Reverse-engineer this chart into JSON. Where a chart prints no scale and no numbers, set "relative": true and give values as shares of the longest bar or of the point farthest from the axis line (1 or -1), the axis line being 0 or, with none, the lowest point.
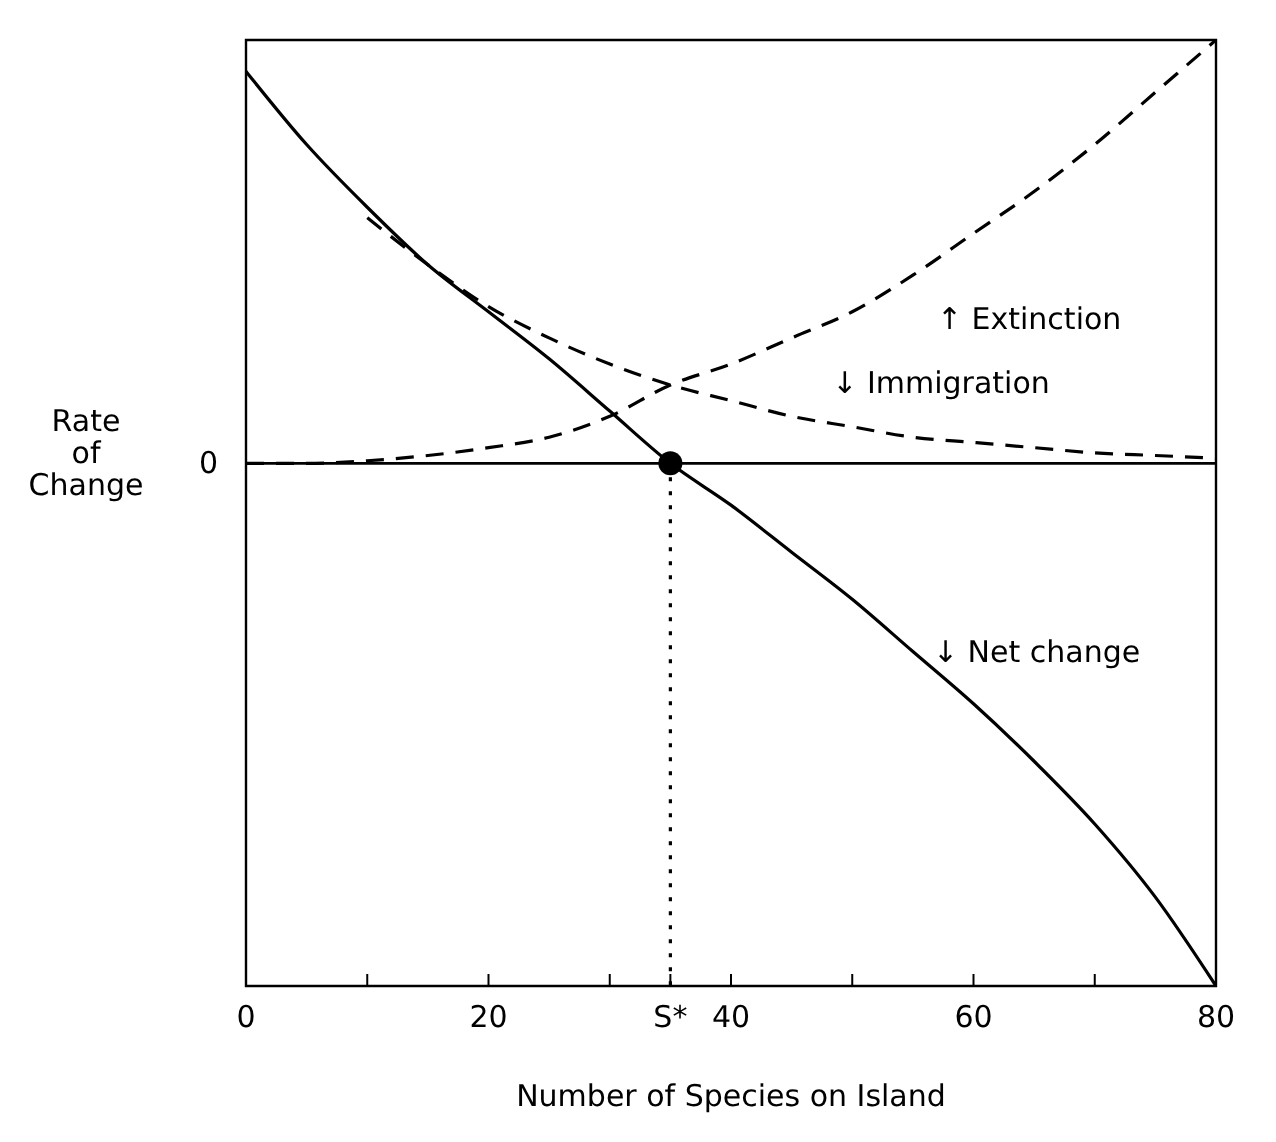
{
  "chart_data": {
    "type": "line",
    "relative": true,
    "xlabel": "Number of Species on Island",
    "ylabel": "Rate of Change",
    "xlim": [
      0,
      80
    ],
    "xticks": [
      0,
      {
        "value": 10,
        "label": null
      },
      20,
      {
        "value": 30,
        "label": null
      },
      {
        "value": 35,
        "label": "S*"
      },
      40,
      {
        "value": 50,
        "label": null
      },
      60,
      {
        "value": 70,
        "label": null
      },
      80
    ],
    "series": [
      {
        "name": "↓ Net change",
        "color": "#000000",
        "line_style": "solid",
        "x": [
          0,
          5,
          10,
          15,
          20,
          25,
          30,
          35,
          40,
          45,
          50,
          55,
          60,
          65,
          70,
          75,
          80
        ],
        "values": [
          0.75,
          0.61,
          0.49,
          0.38,
          0.29,
          0.2,
          0.1,
          0,
          -0.08,
          -0.17,
          -0.26,
          -0.36,
          -0.46,
          -0.57,
          -0.69,
          -0.83,
          -1
        ]
      },
      {
        "name": "↓ Immigration",
        "color": "#000000",
        "line_style": "dashed",
        "x": [
          10,
          15,
          20,
          25,
          30,
          35,
          40,
          45,
          50,
          55,
          60,
          65,
          70,
          75,
          80
        ],
        "values": [
          0.47,
          0.38,
          0.3,
          0.24,
          0.19,
          0.15,
          0.12,
          0.09,
          0.07,
          0.05,
          0.04,
          0.03,
          0.02,
          0.015,
          0.01
        ]
      },
      {
        "name": "↑ Extinction",
        "color": "#000000",
        "line_style": "dashed",
        "x": [
          0,
          5,
          10,
          15,
          20,
          25,
          30,
          35,
          40,
          45,
          50,
          55,
          60,
          65,
          70,
          75,
          80
        ],
        "values": [
          0,
          0,
          0.005,
          0.015,
          0.03,
          0.05,
          0.09,
          0.15,
          0.19,
          0.24,
          0.29,
          0.36,
          0.44,
          0.52,
          0.61,
          0.71,
          0.81
        ]
      },
      {
        "type": "scatter",
        "color": "#000000",
        "marker": "circle",
        "x": [
          35
        ],
        "values": [
          0
        ]
      }
    ],
    "ref_lines": [
      {
        "axis": "y",
        "value": 0,
        "label": "0",
        "line_style": "solid",
        "color": "#000000"
      },
      {
        "axis": "x",
        "value": 35,
        "label": null,
        "line_style": "dotted",
        "color": "#000000"
      }
    ]
  }
}
